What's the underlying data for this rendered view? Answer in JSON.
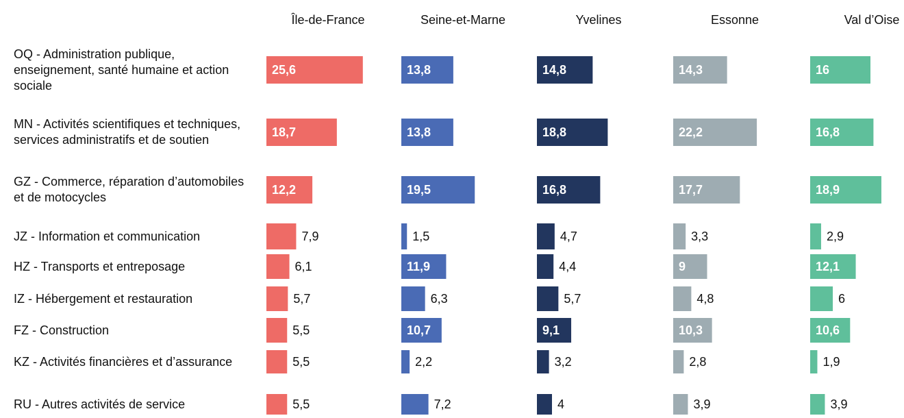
{
  "chart_data": {
    "type": "bar",
    "orientation": "horizontal",
    "categories": [
      "OQ - Administration publique, enseignement, santé humaine et action sociale",
      "MN - Activités scientifiques et techniques, services administratifs et de soutien",
      "GZ - Commerce, réparation d’automobiles et de motocycles",
      "JZ - Information et communication",
      "HZ - Transports et entreposage",
      "IZ - Hébergement et restauration",
      "FZ - Construction",
      "KZ - Activités financières et d’assurance",
      "RU - Autres activités de service"
    ],
    "xlim": [
      0,
      36
    ],
    "series": [
      {
        "name": "Île-de-France",
        "color": "#ee6b66",
        "values": [
          25.6,
          18.7,
          12.2,
          7.9,
          6.1,
          5.7,
          5.5,
          5.5,
          5.5
        ],
        "value_labels": [
          "25,6",
          "18,7",
          "12,2",
          "7,9",
          "6,1",
          "5,7",
          "5,5",
          "5,5",
          "5,5"
        ]
      },
      {
        "name": "Seine-et-Marne",
        "color": "#4a6bb5",
        "values": [
          13.8,
          13.8,
          19.5,
          1.5,
          11.9,
          6.3,
          10.7,
          2.2,
          7.2
        ],
        "value_labels": [
          "13,8",
          "13,8",
          "19,5",
          "1,5",
          "11,9",
          "6,3",
          "10,7",
          "2,2",
          "7,2"
        ]
      },
      {
        "name": "Yvelines",
        "color": "#22365e",
        "values": [
          14.8,
          18.8,
          16.8,
          4.7,
          4.4,
          5.7,
          9.1,
          3.2,
          4
        ],
        "value_labels": [
          "14,8",
          "18,8",
          "16,8",
          "4,7",
          "4,4",
          "5,7",
          "9,1",
          "3,2",
          "4"
        ]
      },
      {
        "name": "Essonne",
        "color": "#9eacb2",
        "values": [
          14.3,
          22.2,
          17.7,
          3.3,
          9,
          4.8,
          10.3,
          2.8,
          3.9
        ],
        "value_labels": [
          "14,3",
          "22,2",
          "17,7",
          "3,3",
          "9",
          "4,8",
          "10,3",
          "2,8",
          "3,9"
        ]
      },
      {
        "name": "Val d’Oise",
        "color": "#5fbf9b",
        "values": [
          16,
          16.8,
          18.9,
          2.9,
          12.1,
          6,
          10.6,
          1.9,
          3.9
        ],
        "value_labels": [
          "16",
          "16,8",
          "18,9",
          "2,9",
          "12,1",
          "6",
          "10,6",
          "1,9",
          "3,9"
        ]
      }
    ]
  }
}
